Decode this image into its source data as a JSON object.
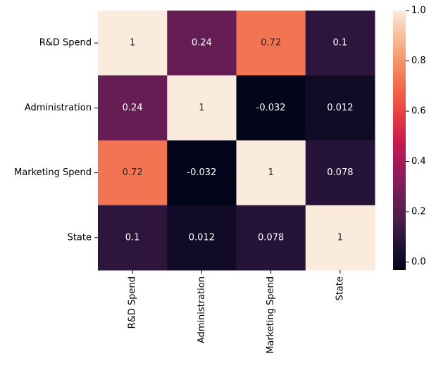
{
  "chart_data": {
    "type": "heatmap",
    "title": "",
    "xlabel": "",
    "ylabel": "",
    "x_categories": [
      "R&D Spend",
      "Administration",
      "Marketing Spend",
      "State"
    ],
    "y_categories": [
      "R&D Spend",
      "Administration",
      "Marketing Spend",
      "State"
    ],
    "values": [
      [
        1,
        0.24,
        0.72,
        0.1
      ],
      [
        0.24,
        1,
        -0.032,
        0.012
      ],
      [
        0.72,
        -0.032,
        1,
        0.078
      ],
      [
        0.1,
        0.012,
        0.078,
        1
      ]
    ],
    "cell_labels": [
      [
        "1",
        "0.24",
        "0.72",
        "0.1"
      ],
      [
        "0.24",
        "1",
        "-0.032",
        "0.012"
      ],
      [
        "0.72",
        "-0.032",
        "1",
        "0.078"
      ],
      [
        "0.1",
        "0.012",
        "0.078",
        "1"
      ]
    ],
    "colorbar": {
      "colormap": "rocket",
      "vmin": -0.032,
      "vmax": 1.0,
      "ticks": [
        0.0,
        0.2,
        0.4,
        0.6,
        0.8,
        1.0
      ],
      "tick_labels": [
        "0.0",
        "0.2",
        "0.4",
        "0.6",
        "0.8",
        "1.0"
      ]
    },
    "colors": {
      "annotation_on_dark": "#ffffff",
      "annotation_on_light": "#262626",
      "tick_text": "#000000"
    },
    "grid": false,
    "legend": "colorbar-right"
  }
}
